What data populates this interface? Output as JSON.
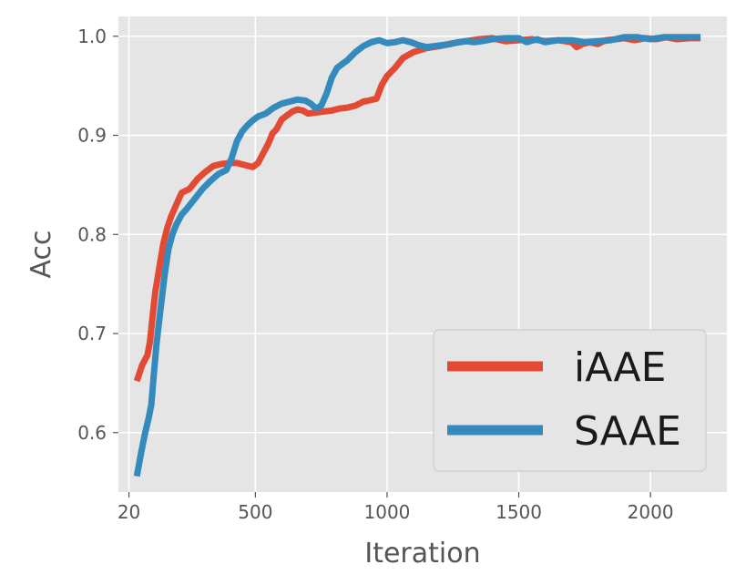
{
  "chart_data": {
    "type": "line",
    "title": "",
    "xlabel": "Iteration",
    "ylabel": "Acc",
    "xlim": [
      -20,
      2290
    ],
    "ylim": [
      0.54,
      1.02
    ],
    "x_ticks": [
      {
        "value": 20,
        "label": "20"
      },
      {
        "value": 500,
        "label": "500"
      },
      {
        "value": 1000,
        "label": "1000"
      },
      {
        "value": 1500,
        "label": "1500"
      },
      {
        "value": 2000,
        "label": "2000"
      }
    ],
    "y_ticks": [
      {
        "value": 0.6,
        "label": "0.6"
      },
      {
        "value": 0.7,
        "label": "0.7"
      },
      {
        "value": 0.8,
        "label": "0.8"
      },
      {
        "value": 0.9,
        "label": "0.9"
      },
      {
        "value": 1.0,
        "label": "1.0"
      }
    ],
    "grid": true,
    "legend_position": "bottom-right",
    "series": [
      {
        "name": "iAAE",
        "color": "#E24A33",
        "points": [
          [
            50,
            0.652
          ],
          [
            70,
            0.668
          ],
          [
            90,
            0.678
          ],
          [
            100,
            0.692
          ],
          [
            110,
            0.718
          ],
          [
            120,
            0.742
          ],
          [
            135,
            0.766
          ],
          [
            150,
            0.79
          ],
          [
            165,
            0.806
          ],
          [
            180,
            0.818
          ],
          [
            200,
            0.83
          ],
          [
            220,
            0.842
          ],
          [
            250,
            0.846
          ],
          [
            280,
            0.856
          ],
          [
            310,
            0.863
          ],
          [
            340,
            0.869
          ],
          [
            370,
            0.871
          ],
          [
            400,
            0.872
          ],
          [
            430,
            0.872
          ],
          [
            460,
            0.87
          ],
          [
            490,
            0.868
          ],
          [
            510,
            0.872
          ],
          [
            530,
            0.882
          ],
          [
            550,
            0.892
          ],
          [
            565,
            0.902
          ],
          [
            580,
            0.906
          ],
          [
            600,
            0.916
          ],
          [
            620,
            0.92
          ],
          [
            640,
            0.924
          ],
          [
            660,
            0.926
          ],
          [
            680,
            0.925
          ],
          [
            700,
            0.922
          ],
          [
            730,
            0.923
          ],
          [
            760,
            0.924
          ],
          [
            790,
            0.925
          ],
          [
            820,
            0.927
          ],
          [
            850,
            0.928
          ],
          [
            880,
            0.93
          ],
          [
            910,
            0.934
          ],
          [
            930,
            0.935
          ],
          [
            960,
            0.937
          ],
          [
            980,
            0.951
          ],
          [
            1000,
            0.96
          ],
          [
            1030,
            0.968
          ],
          [
            1060,
            0.978
          ],
          [
            1100,
            0.984
          ],
          [
            1150,
            0.988
          ],
          [
            1200,
            0.99
          ],
          [
            1250,
            0.993
          ],
          [
            1300,
            0.995
          ],
          [
            1350,
            0.997
          ],
          [
            1400,
            0.998
          ],
          [
            1450,
            0.995
          ],
          [
            1500,
            0.996
          ],
          [
            1550,
            0.997
          ],
          [
            1600,
            0.995
          ],
          [
            1650,
            0.996
          ],
          [
            1700,
            0.994
          ],
          [
            1720,
            0.989
          ],
          [
            1740,
            0.992
          ],
          [
            1770,
            0.994
          ],
          [
            1800,
            0.992
          ],
          [
            1830,
            0.996
          ],
          [
            1870,
            0.997
          ],
          [
            1900,
            0.998
          ],
          [
            1940,
            0.996
          ],
          [
            1980,
            0.998
          ],
          [
            2020,
            0.997
          ],
          [
            2060,
            0.999
          ],
          [
            2100,
            0.997
          ],
          [
            2150,
            0.998
          ],
          [
            2190,
            0.998
          ]
        ]
      },
      {
        "name": "SAAE",
        "color": "#348ABD",
        "points": [
          [
            50,
            0.556
          ],
          [
            65,
            0.578
          ],
          [
            80,
            0.598
          ],
          [
            95,
            0.615
          ],
          [
            105,
            0.628
          ],
          [
            115,
            0.66
          ],
          [
            125,
            0.69
          ],
          [
            140,
            0.725
          ],
          [
            155,
            0.758
          ],
          [
            170,
            0.785
          ],
          [
            185,
            0.8
          ],
          [
            200,
            0.81
          ],
          [
            220,
            0.82
          ],
          [
            240,
            0.826
          ],
          [
            270,
            0.836
          ],
          [
            300,
            0.846
          ],
          [
            330,
            0.854
          ],
          [
            360,
            0.861
          ],
          [
            390,
            0.865
          ],
          [
            410,
            0.877
          ],
          [
            430,
            0.894
          ],
          [
            450,
            0.904
          ],
          [
            470,
            0.91
          ],
          [
            490,
            0.915
          ],
          [
            510,
            0.919
          ],
          [
            540,
            0.922
          ],
          [
            570,
            0.928
          ],
          [
            600,
            0.932
          ],
          [
            630,
            0.934
          ],
          [
            660,
            0.936
          ],
          [
            690,
            0.935
          ],
          [
            710,
            0.932
          ],
          [
            730,
            0.927
          ],
          [
            750,
            0.93
          ],
          [
            770,
            0.942
          ],
          [
            790,
            0.958
          ],
          [
            810,
            0.968
          ],
          [
            830,
            0.972
          ],
          [
            850,
            0.976
          ],
          [
            880,
            0.984
          ],
          [
            910,
            0.99
          ],
          [
            940,
            0.994
          ],
          [
            970,
            0.996
          ],
          [
            1000,
            0.993
          ],
          [
            1030,
            0.994
          ],
          [
            1060,
            0.996
          ],
          [
            1090,
            0.994
          ],
          [
            1120,
            0.991
          ],
          [
            1150,
            0.989
          ],
          [
            1180,
            0.99
          ],
          [
            1210,
            0.991
          ],
          [
            1240,
            0.992
          ],
          [
            1270,
            0.994
          ],
          [
            1300,
            0.995
          ],
          [
            1330,
            0.994
          ],
          [
            1360,
            0.995
          ],
          [
            1400,
            0.997
          ],
          [
            1450,
            0.998
          ],
          [
            1500,
            0.998
          ],
          [
            1530,
            0.994
          ],
          [
            1570,
            0.997
          ],
          [
            1600,
            0.994
          ],
          [
            1650,
            0.996
          ],
          [
            1700,
            0.996
          ],
          [
            1750,
            0.994
          ],
          [
            1800,
            0.995
          ],
          [
            1850,
            0.996
          ],
          [
            1900,
            0.999
          ],
          [
            1950,
            0.999
          ],
          [
            2000,
            0.997
          ],
          [
            2050,
            0.999
          ],
          [
            2100,
            0.999
          ],
          [
            2150,
            0.999
          ],
          [
            2190,
            0.999
          ]
        ]
      }
    ]
  }
}
